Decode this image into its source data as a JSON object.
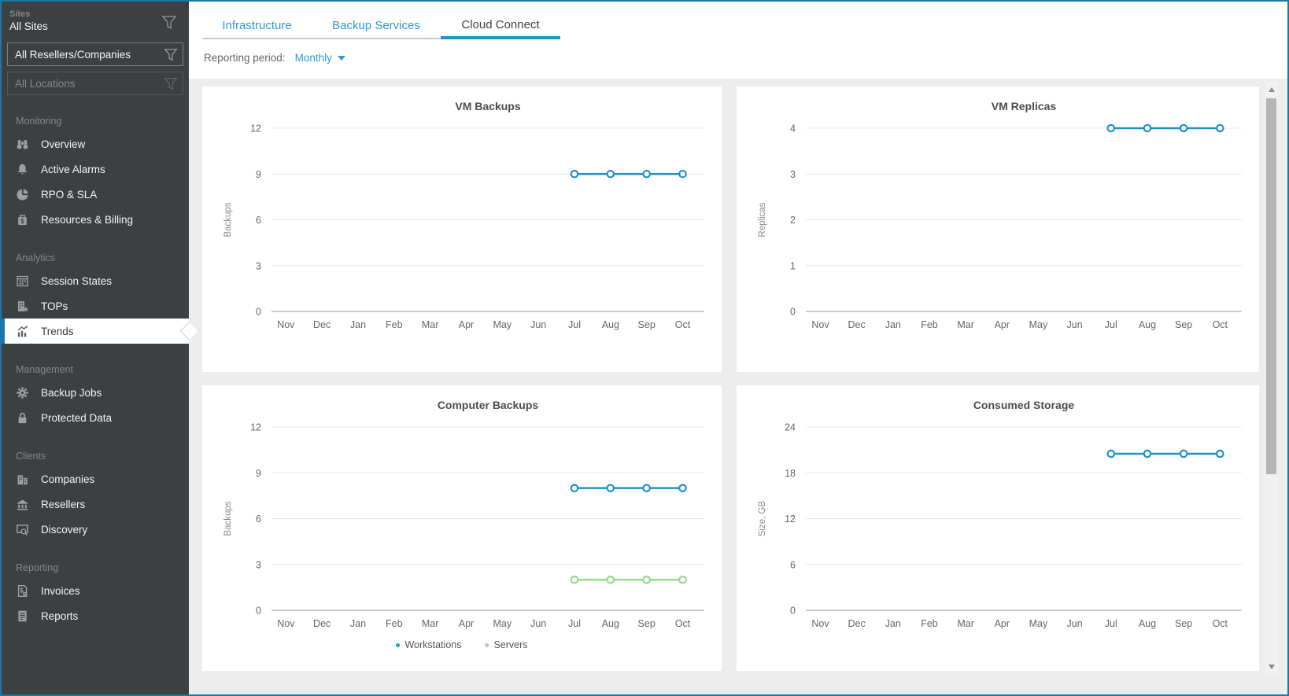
{
  "window": {
    "frame_color": "#1878ae"
  },
  "colors": {
    "sidebar_bg": "#3d4043",
    "content_bg": "#ededed",
    "accent_blue": "#2191cb",
    "link_blue": "#2e9ad3",
    "series_green": "#96d98f",
    "grid_line": "#e8e8e8",
    "zero_line": "#9c9c9c",
    "axis_text": "#666666"
  },
  "sidebar": {
    "filters": {
      "sites_label": "Sites",
      "sites_value": "All Sites",
      "resellers_value": "All Resellers/Companies",
      "locations_value": "All Locations"
    },
    "sections": [
      {
        "label": "Monitoring",
        "items": [
          {
            "label": "Overview",
            "icon": "binoculars-icon"
          },
          {
            "label": "Active Alarms",
            "icon": "bell-icon"
          },
          {
            "label": "RPO & SLA",
            "icon": "pie-icon"
          },
          {
            "label": "Resources & Billing",
            "icon": "billing-icon"
          }
        ]
      },
      {
        "label": "Analytics",
        "items": [
          {
            "label": "Session States",
            "icon": "grid-icon"
          },
          {
            "label": "TOPs",
            "icon": "tops-icon"
          },
          {
            "label": "Trends",
            "icon": "trends-icon",
            "active": true
          }
        ]
      },
      {
        "label": "Management",
        "items": [
          {
            "label": "Backup Jobs",
            "icon": "gear-icon"
          },
          {
            "label": "Protected Data",
            "icon": "lock-icon"
          }
        ]
      },
      {
        "label": "Clients",
        "items": [
          {
            "label": "Companies",
            "icon": "companies-icon"
          },
          {
            "label": "Resellers",
            "icon": "bank-icon"
          },
          {
            "label": "Discovery",
            "icon": "discovery-icon"
          }
        ]
      },
      {
        "label": "Reporting",
        "items": [
          {
            "label": "Invoices",
            "icon": "invoice-icon"
          },
          {
            "label": "Reports",
            "icon": "report-icon"
          }
        ]
      }
    ]
  },
  "tabs": [
    {
      "label": "Infrastructure",
      "active": false
    },
    {
      "label": "Backup Services",
      "active": false
    },
    {
      "label": "Cloud Connect",
      "active": true
    }
  ],
  "reporting_period": {
    "label": "Reporting period:",
    "value": "Monthly"
  },
  "chart_data": [
    {
      "type": "line",
      "title": "VM Backups",
      "ylabel": "Backups",
      "ylim": [
        0,
        12
      ],
      "yticks": [
        0,
        3,
        6,
        9,
        12
      ],
      "categories": [
        "Nov",
        "Dec",
        "Jan",
        "Feb",
        "Mar",
        "Apr",
        "May",
        "Jun",
        "Jul",
        "Aug",
        "Sep",
        "Oct"
      ],
      "legend": false,
      "series": [
        {
          "name": "Backups",
          "color": "#2191cb",
          "values": [
            null,
            null,
            null,
            null,
            null,
            null,
            null,
            null,
            9,
            9,
            9,
            9
          ]
        }
      ]
    },
    {
      "type": "line",
      "title": "VM Replicas",
      "ylabel": "Replicas",
      "ylim": [
        0,
        4
      ],
      "yticks": [
        0,
        1,
        2,
        3,
        4
      ],
      "categories": [
        "Nov",
        "Dec",
        "Jan",
        "Feb",
        "Mar",
        "Apr",
        "May",
        "Jun",
        "Jul",
        "Aug",
        "Sep",
        "Oct"
      ],
      "legend": false,
      "series": [
        {
          "name": "Replicas",
          "color": "#2191cb",
          "values": [
            null,
            null,
            null,
            null,
            null,
            null,
            null,
            null,
            4,
            4,
            4,
            4
          ]
        }
      ]
    },
    {
      "type": "line",
      "title": "Computer Backups",
      "ylabel": "Backups",
      "ylim": [
        0,
        12
      ],
      "yticks": [
        0,
        3,
        6,
        9,
        12
      ],
      "categories": [
        "Nov",
        "Dec",
        "Jan",
        "Feb",
        "Mar",
        "Apr",
        "May",
        "Jun",
        "Jul",
        "Aug",
        "Sep",
        "Oct"
      ],
      "legend": true,
      "series": [
        {
          "name": "Workstations",
          "color": "#2191cb",
          "values": [
            null,
            null,
            null,
            null,
            null,
            null,
            null,
            null,
            8,
            8,
            8,
            8
          ]
        },
        {
          "name": "Servers",
          "color": "#96d98f",
          "values": [
            null,
            null,
            null,
            null,
            null,
            null,
            null,
            null,
            2,
            2,
            2,
            2
          ]
        }
      ]
    },
    {
      "type": "line",
      "title": "Consumed Storage",
      "ylabel": "Size, GB",
      "ylim": [
        0,
        24
      ],
      "yticks": [
        0,
        6,
        12,
        18,
        24
      ],
      "categories": [
        "Nov",
        "Dec",
        "Jan",
        "Feb",
        "Mar",
        "Apr",
        "May",
        "Jun",
        "Jul",
        "Aug",
        "Sep",
        "Oct"
      ],
      "legend": false,
      "series": [
        {
          "name": "Size, GB",
          "color": "#2191cb",
          "values": [
            null,
            null,
            null,
            null,
            null,
            null,
            null,
            null,
            20.5,
            20.5,
            20.5,
            20.5
          ]
        }
      ]
    }
  ]
}
